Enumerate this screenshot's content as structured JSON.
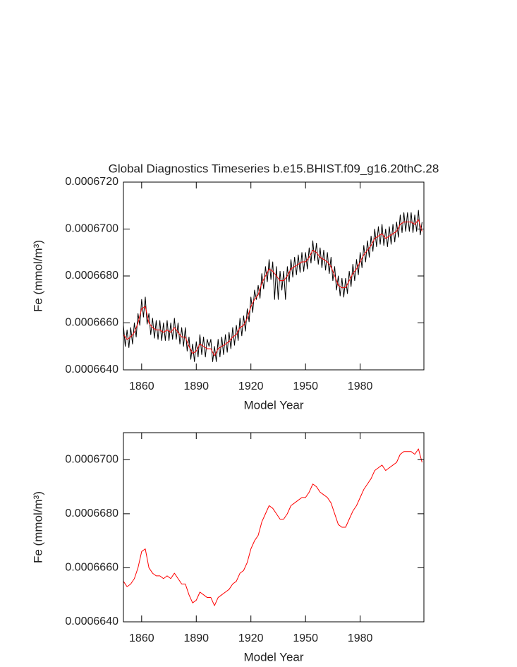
{
  "chart_data": [
    {
      "type": "line",
      "title": "Global Diagnostics Timeseries b.e15.BHIST.f09_g16.20thC.28",
      "xlabel": "Model Year",
      "ylabel": "Fe (mmol/m³)",
      "xlim": [
        1850,
        2015
      ],
      "xticks": [
        1860,
        1890,
        1920,
        1950,
        1980
      ],
      "ylim": [
        0.000664,
        0.000672
      ],
      "yticks": [
        {
          "value": 0.000664,
          "label": "0.0006640"
        },
        {
          "value": 0.000666,
          "label": "0.0006660"
        },
        {
          "value": 0.000668,
          "label": "0.0006680"
        },
        {
          "value": 0.00067,
          "label": "0.0006700"
        },
        {
          "value": 0.000672,
          "label": "0.0006720"
        }
      ],
      "series": [
        {
          "color": "#000000",
          "x": [
            1850,
            1851,
            1852,
            1853,
            1854,
            1855,
            1856,
            1857,
            1858,
            1859,
            1860,
            1861,
            1862,
            1863,
            1864,
            1865,
            1866,
            1867,
            1868,
            1869,
            1870,
            1871,
            1872,
            1873,
            1874,
            1875,
            1876,
            1877,
            1878,
            1879,
            1880,
            1881,
            1882,
            1883,
            1884,
            1885,
            1886,
            1887,
            1888,
            1889,
            1890,
            1891,
            1892,
            1893,
            1894,
            1895,
            1896,
            1897,
            1898,
            1899,
            1900,
            1901,
            1902,
            1903,
            1904,
            1905,
            1906,
            1907,
            1908,
            1909,
            1910,
            1911,
            1912,
            1913,
            1914,
            1915,
            1916,
            1917,
            1918,
            1919,
            1920,
            1921,
            1922,
            1923,
            1924,
            1925,
            1926,
            1927,
            1928,
            1929,
            1930,
            1931,
            1932,
            1933,
            1934,
            1935,
            1936,
            1937,
            1938,
            1939,
            1940,
            1941,
            1942,
            1943,
            1944,
            1945,
            1946,
            1947,
            1948,
            1949,
            1950,
            1951,
            1952,
            1953,
            1954,
            1955,
            1956,
            1957,
            1958,
            1959,
            1960,
            1961,
            1962,
            1963,
            1964,
            1965,
            1966,
            1967,
            1968,
            1969,
            1970,
            1971,
            1972,
            1973,
            1974,
            1975,
            1976,
            1977,
            1978,
            1979,
            1980,
            1981,
            1982,
            1983,
            1984,
            1985,
            1986,
            1987,
            1988,
            1989,
            1990,
            1991,
            1992,
            1993,
            1994,
            1995,
            1996,
            1997,
            1998,
            1999,
            2000,
            2001,
            2002,
            2003,
            2004,
            2005,
            2006,
            2007,
            2008,
            2009,
            2010,
            2011,
            2012,
            2013,
            2014
          ],
          "values": [
            0.0006659,
            0.000665,
            0.0006657,
            0.00066495,
            0.0006658,
            0.0006651,
            0.000666,
            0.0006654,
            0.0006664,
            0.0006659,
            0.000667,
            0.00066625,
            0.0006671,
            0.00066595,
            0.0006664,
            0.0006655,
            0.0006662,
            0.00066535,
            0.0006661,
            0.0006653,
            0.0006661,
            0.00066525,
            0.000666,
            0.00066525,
            0.0006661,
            0.00066525,
            0.000666,
            0.0006653,
            0.0006662,
            0.0006653,
            0.000666,
            0.0006651,
            0.0006658,
            0.000665,
            0.0006658,
            0.0006648,
            0.0006654,
            0.00066445,
            0.0006651,
            0.00066435,
            0.0006652,
            0.00066455,
            0.0006655,
            0.00066465,
            0.0006654,
            0.00066455,
            0.0006653,
            0.000665,
            0.0006653,
            0.00066435,
            0.000665,
            0.00066435,
            0.0006653,
            0.00066455,
            0.0006654,
            0.00066465,
            0.0006655,
            0.00066475,
            0.0006656,
            0.0006649,
            0.0006658,
            0.00066505,
            0.0006659,
            0.00066525,
            0.0006662,
            0.00066545,
            0.0006663,
            0.00066565,
            0.0006666,
            0.00066605,
            0.0006671,
            0.00066645,
            0.0006674,
            0.000667,
            0.0006676,
            0.00066705,
            0.0006681,
            0.00066745,
            0.0006684,
            0.00066775,
            0.0006687,
            0.00066785,
            0.0006686,
            0.000667,
            0.0006684,
            0.000667,
            0.0006682,
            0.0006674,
            0.0006682,
            0.000667,
            0.0006684,
            0.00066775,
            0.0006687,
            0.00066795,
            0.0006688,
            0.00066805,
            0.0006689,
            0.00066815,
            0.000669,
            0.0006682,
            0.000669,
            0.0006683,
            0.0006692,
            0.00066855,
            0.0006695,
            0.00066865,
            0.0006694,
            0.0006685,
            0.0006692,
            0.00066835,
            0.0006691,
            0.00066825,
            0.000669,
            0.0006681,
            0.0006688,
            0.0006678,
            0.0006684,
            0.0006674,
            0.000668,
            0.00066715,
            0.0006679,
            0.0006671,
            0.0006679,
            0.00066725,
            0.0006682,
            0.00066755,
            0.0006685,
            0.0006678,
            0.0006687,
            0.00066805,
            0.000669,
            0.00066835,
            0.0006693,
            0.0006686,
            0.0006695,
            0.0006688,
            0.0006697,
            0.00066905,
            0.00067,
            0.00066925,
            0.0006701,
            0.00066935,
            0.0006702,
            0.0006693,
            0.00067,
            0.00066925,
            0.0006701,
            0.00066935,
            0.0006702,
            0.00066945,
            0.0006703,
            0.00066965,
            0.0006706,
            0.00066985,
            0.0006707,
            0.0006699,
            0.0006707,
            0.0006699,
            0.0006707,
            0.00066985,
            0.0006706,
            0.0006699,
            0.0006708,
            0.00066975,
            0.0006703
          ]
        },
        {
          "color": "#ff0000",
          "x": [
            1850,
            1852,
            1854,
            1856,
            1858,
            1860,
            1862,
            1864,
            1866,
            1868,
            1870,
            1872,
            1874,
            1876,
            1878,
            1880,
            1882,
            1884,
            1886,
            1888,
            1890,
            1892,
            1894,
            1896,
            1898,
            1900,
            1902,
            1904,
            1906,
            1908,
            1910,
            1912,
            1914,
            1916,
            1918,
            1920,
            1922,
            1924,
            1926,
            1928,
            1930,
            1932,
            1934,
            1936,
            1938,
            1940,
            1942,
            1944,
            1946,
            1948,
            1950,
            1952,
            1954,
            1956,
            1958,
            1960,
            1962,
            1964,
            1966,
            1968,
            1970,
            1972,
            1974,
            1976,
            1978,
            1980,
            1982,
            1984,
            1986,
            1988,
            1990,
            1992,
            1994,
            1996,
            1998,
            2000,
            2002,
            2004,
            2006,
            2008,
            2010,
            2012,
            2014
          ],
          "values": [
            0.0006655,
            0.0006653,
            0.0006654,
            0.0006656,
            0.000666,
            0.0006666,
            0.0006667,
            0.000666,
            0.0006658,
            0.0006657,
            0.0006657,
            0.0006656,
            0.0006657,
            0.0006656,
            0.0006658,
            0.0006656,
            0.0006654,
            0.0006654,
            0.000665,
            0.0006647,
            0.0006648,
            0.0006651,
            0.000665,
            0.0006649,
            0.0006649,
            0.0006646,
            0.0006649,
            0.000665,
            0.0006651,
            0.0006652,
            0.0006654,
            0.0006655,
            0.0006658,
            0.0006659,
            0.0006662,
            0.0006667,
            0.000667,
            0.0006672,
            0.0006677,
            0.000668,
            0.0006683,
            0.0006682,
            0.000668,
            0.0006678,
            0.0006678,
            0.000668,
            0.0006683,
            0.0006684,
            0.0006685,
            0.0006686,
            0.0006686,
            0.0006688,
            0.0006691,
            0.000669,
            0.0006688,
            0.0006687,
            0.0006686,
            0.0006684,
            0.000668,
            0.0006676,
            0.0006675,
            0.0006675,
            0.0006678,
            0.0006681,
            0.0006683,
            0.0006686,
            0.0006689,
            0.0006691,
            0.0006693,
            0.0006696,
            0.0006697,
            0.0006698,
            0.0006696,
            0.0006697,
            0.0006698,
            0.0006699,
            0.0006702,
            0.0006703,
            0.0006703,
            0.0006703,
            0.0006702,
            0.0006704,
            0.0006699
          ]
        }
      ]
    },
    {
      "type": "line",
      "xlabel": "Model Year",
      "ylabel": "Fe (mmol/m³)",
      "xlim": [
        1850,
        2015
      ],
      "xticks": [
        1860,
        1890,
        1920,
        1950,
        1980
      ],
      "ylim": [
        0.000664,
        0.000671
      ],
      "yticks": [
        {
          "value": 0.000664,
          "label": "0.0006640"
        },
        {
          "value": 0.000666,
          "label": "0.0006660"
        },
        {
          "value": 0.000668,
          "label": "0.0006680"
        },
        {
          "value": 0.00067,
          "label": "0.0006700"
        }
      ],
      "series": [
        {
          "color": "#ff0000",
          "x": [
            1850,
            1852,
            1854,
            1856,
            1858,
            1860,
            1862,
            1864,
            1866,
            1868,
            1870,
            1872,
            1874,
            1876,
            1878,
            1880,
            1882,
            1884,
            1886,
            1888,
            1890,
            1892,
            1894,
            1896,
            1898,
            1900,
            1902,
            1904,
            1906,
            1908,
            1910,
            1912,
            1914,
            1916,
            1918,
            1920,
            1922,
            1924,
            1926,
            1928,
            1930,
            1932,
            1934,
            1936,
            1938,
            1940,
            1942,
            1944,
            1946,
            1948,
            1950,
            1952,
            1954,
            1956,
            1958,
            1960,
            1962,
            1964,
            1966,
            1968,
            1970,
            1972,
            1974,
            1976,
            1978,
            1980,
            1982,
            1984,
            1986,
            1988,
            1990,
            1992,
            1994,
            1996,
            1998,
            2000,
            2002,
            2004,
            2006,
            2008,
            2010,
            2012,
            2014
          ],
          "values": [
            0.0006655,
            0.0006653,
            0.0006654,
            0.0006656,
            0.000666,
            0.0006666,
            0.0006667,
            0.000666,
            0.0006658,
            0.0006657,
            0.0006657,
            0.0006656,
            0.0006657,
            0.0006656,
            0.0006658,
            0.0006656,
            0.0006654,
            0.0006654,
            0.000665,
            0.0006647,
            0.0006648,
            0.0006651,
            0.000665,
            0.0006649,
            0.0006649,
            0.0006646,
            0.0006649,
            0.000665,
            0.0006651,
            0.0006652,
            0.0006654,
            0.0006655,
            0.0006658,
            0.0006659,
            0.0006662,
            0.0006667,
            0.000667,
            0.0006672,
            0.0006677,
            0.000668,
            0.0006683,
            0.0006682,
            0.000668,
            0.0006678,
            0.0006678,
            0.000668,
            0.0006683,
            0.0006684,
            0.0006685,
            0.0006686,
            0.0006686,
            0.0006688,
            0.0006691,
            0.000669,
            0.0006688,
            0.0006687,
            0.0006686,
            0.0006684,
            0.000668,
            0.0006676,
            0.0006675,
            0.0006675,
            0.0006678,
            0.0006681,
            0.0006683,
            0.0006686,
            0.0006689,
            0.0006691,
            0.0006693,
            0.0006696,
            0.0006697,
            0.0006698,
            0.0006696,
            0.0006697,
            0.0006698,
            0.0006699,
            0.0006702,
            0.0006703,
            0.0006703,
            0.0006703,
            0.0006702,
            0.0006704,
            0.0006699
          ]
        }
      ]
    }
  ]
}
